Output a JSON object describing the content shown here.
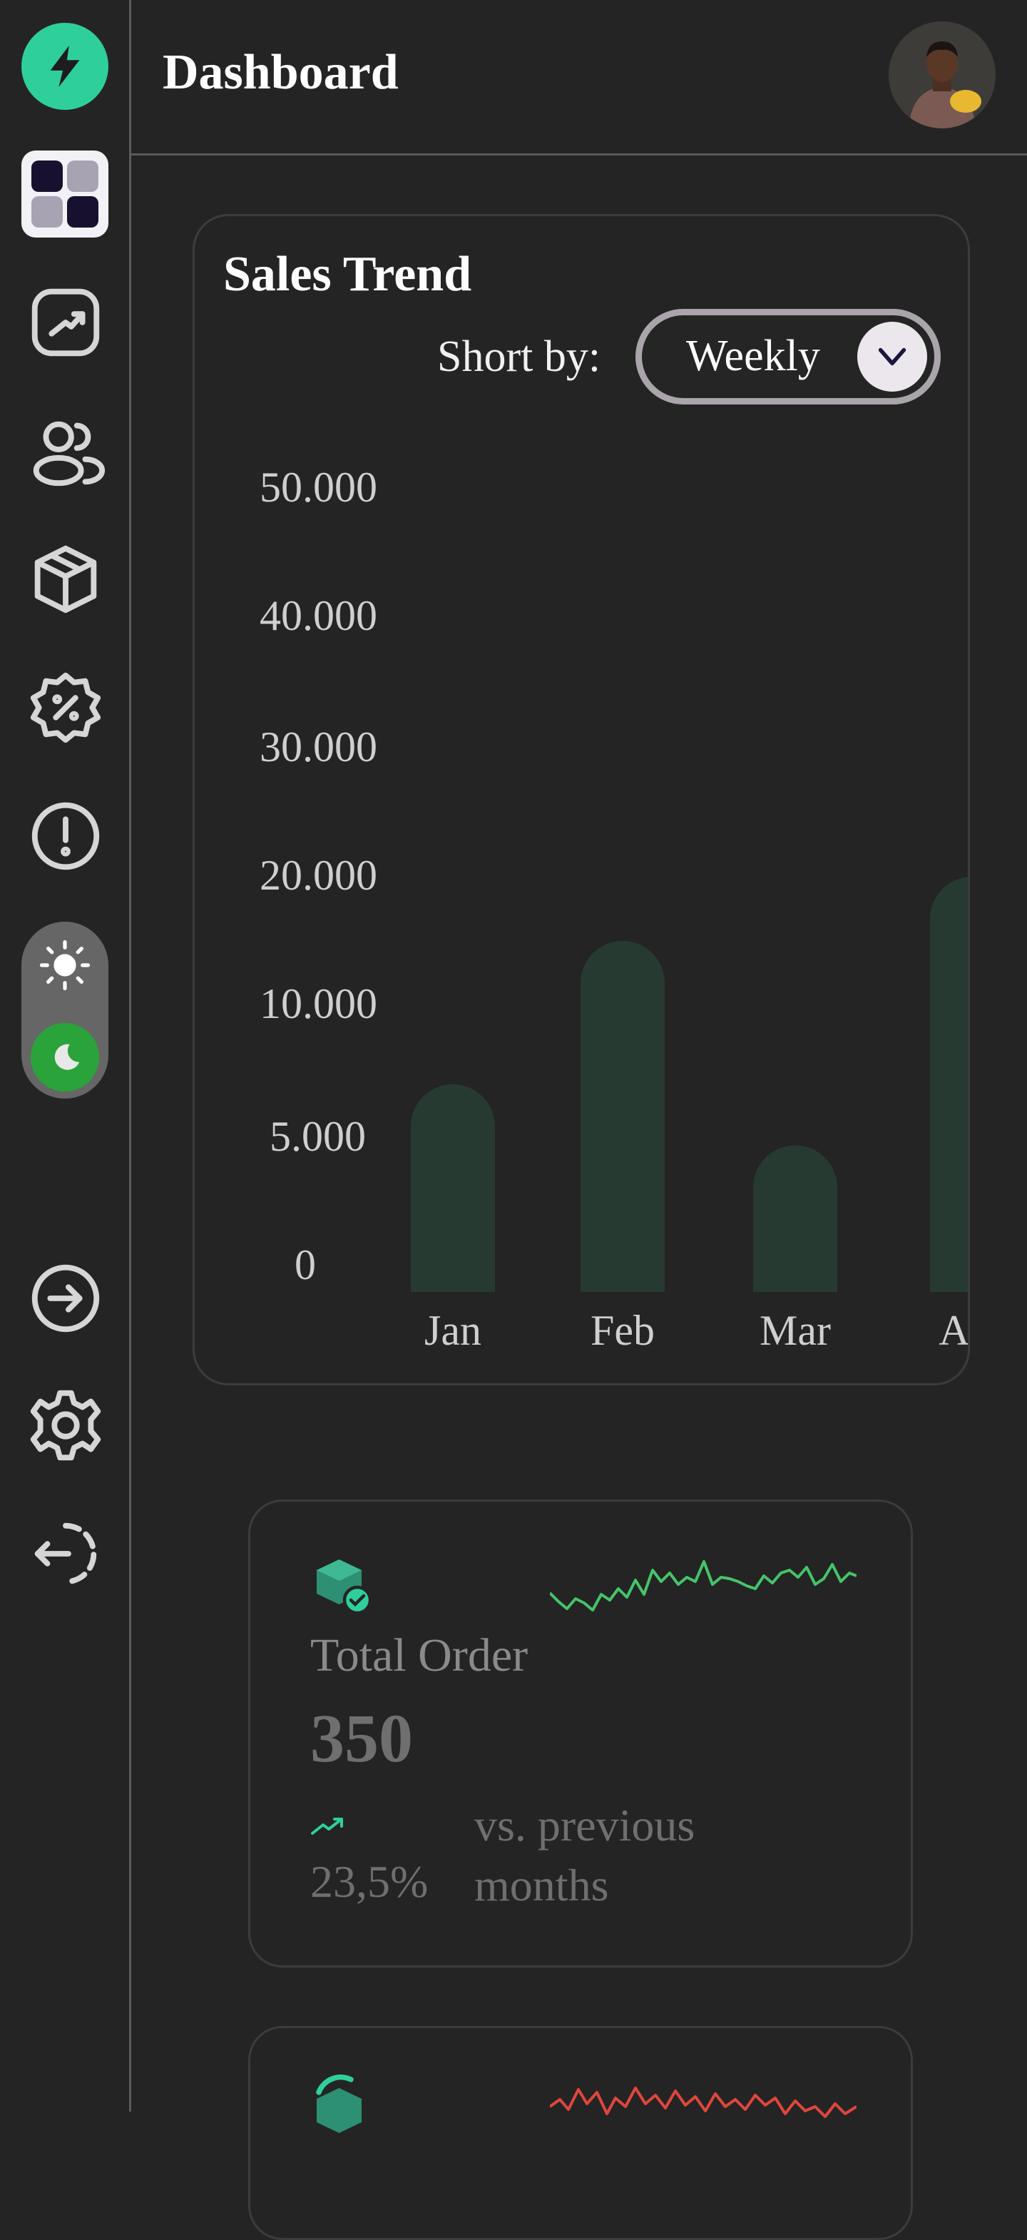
{
  "header": {
    "title": "Dashboard"
  },
  "sidebar": {
    "items": [
      {
        "icon": "lightning-icon"
      },
      {
        "icon": "dashboard-grid-icon"
      },
      {
        "icon": "trend-chart-icon"
      },
      {
        "icon": "users-icon"
      },
      {
        "icon": "box-icon"
      },
      {
        "icon": "discount-badge-icon"
      },
      {
        "icon": "alert-icon"
      },
      {
        "icon": "sun-icon"
      },
      {
        "icon": "moon-icon"
      },
      {
        "icon": "arrow-right-circle-icon"
      },
      {
        "icon": "settings-gear-icon"
      },
      {
        "icon": "logout-icon"
      }
    ]
  },
  "colors": {
    "brand": "#2fcf9c",
    "bar": "#263a31",
    "spark_green": "#45c46a",
    "spark_red": "#e0463c",
    "toggle_active": "#2aa33a"
  },
  "sales": {
    "title": "Sales Trend",
    "sort_label": "Short by:",
    "sort_value": "Weekly"
  },
  "chart_data": {
    "type": "bar",
    "categories": [
      "Jan",
      "Feb",
      "Mar",
      "Apr"
    ],
    "values": [
      7500,
      16000,
      5200,
      21000
    ],
    "yticks": [
      "50.000",
      "40.000",
      "30.000",
      "20.000",
      "10.000",
      "5.000",
      "0"
    ],
    "title": "Sales Trend",
    "xlabel": "",
    "ylabel": "",
    "grid": false
  },
  "order": {
    "label": "Total Order",
    "value": "350",
    "change": "23,5%",
    "compare": "vs. previous months"
  }
}
